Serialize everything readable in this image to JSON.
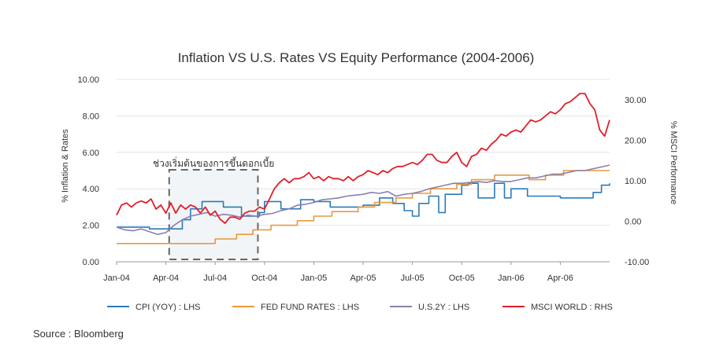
{
  "chart_data": {
    "type": "line",
    "title": "Inflation VS U.S. Rates VS Equity Performance (2004-2006)",
    "ylabel_left": "% Inflation & Rates",
    "ylabel_right": "% MSCI Performance",
    "ylim_left": [
      0,
      10
    ],
    "ylim_right": [
      -10,
      35
    ],
    "left_ticks": [
      "0.00",
      "2.00",
      "4.00",
      "6.00",
      "8.00",
      "10.00"
    ],
    "left_tick_values": [
      0,
      2,
      4,
      6,
      8,
      10
    ],
    "right_ticks": [
      "-10.00",
      "0.00",
      "10.00",
      "20.00",
      "30.00"
    ],
    "right_tick_values": [
      -10,
      0,
      10,
      20,
      30
    ],
    "x_ticks": [
      "Jan-04",
      "Apr-04",
      "Jul-04",
      "Oct-04",
      "Jan-05",
      "Apr-05",
      "Jul-05",
      "Oct-05",
      "Jan-06",
      "Apr-06"
    ],
    "x_tick_values": [
      0,
      3,
      6,
      9,
      12,
      15,
      18,
      21,
      24,
      27
    ],
    "x_range": [
      0,
      30
    ],
    "annotation": {
      "text": "ช่วงเริ่มต้นของการขึ้นดอกเบี้ย",
      "x_start": 3.2,
      "x_end": 8.6
    },
    "series": [
      {
        "name": "CPI (YOY) : LHS",
        "axis": "left",
        "color": "#2a7ab8",
        "step": true,
        "x": [
          0,
          2,
          3.0,
          4.0,
          4.5,
          5.2,
          6.5,
          7.0,
          7.6,
          8.7,
          9.0,
          10.0,
          11.2,
          12.0,
          13.0,
          14.0,
          15.0,
          16.0,
          16.8,
          17.5,
          18.0,
          18.4,
          19.0,
          19.6,
          20.0,
          20.6,
          21.0,
          21.4,
          22.0,
          23.0,
          23.6,
          24.0,
          25.0,
          26.0,
          27.0,
          28.0,
          29.0,
          29.5,
          30.0
        ],
        "y": [
          1.9,
          1.8,
          1.8,
          2.3,
          2.9,
          3.3,
          3.0,
          3.0,
          2.5,
          2.7,
          3.3,
          2.9,
          3.4,
          3.3,
          3.0,
          3.0,
          3.1,
          3.5,
          3.2,
          2.8,
          2.5,
          3.2,
          3.6,
          2.7,
          3.7,
          3.7,
          4.2,
          4.3,
          3.5,
          4.3,
          3.5,
          4.0,
          3.6,
          3.6,
          3.5,
          3.5,
          3.8,
          4.2,
          4.3
        ]
      },
      {
        "name": "FED FUND RATES : LHS",
        "axis": "left",
        "color": "#e89a3c",
        "step": true,
        "x": [
          0,
          6.0,
          7.3,
          8.3,
          9.4,
          11.0,
          12.0,
          13.1,
          14.7,
          15.7,
          17.0,
          18.0,
          19.1,
          20.7,
          21.6,
          23.0,
          24.0,
          25.1,
          26.1,
          27.2,
          28.6,
          30.0
        ],
        "y": [
          1.0,
          1.25,
          1.5,
          1.75,
          2.0,
          2.25,
          2.5,
          2.75,
          3.0,
          3.25,
          3.5,
          3.75,
          4.0,
          4.25,
          4.5,
          4.75,
          4.75,
          4.5,
          4.75,
          5.0,
          5.0,
          5.0
        ]
      },
      {
        "name": "U.S.2Y : LHS",
        "axis": "left",
        "color": "#8a7fb0",
        "step": false,
        "x": [
          0,
          0.5,
          1.0,
          1.5,
          2.0,
          2.5,
          3.0,
          3.5,
          4.0,
          4.5,
          5.0,
          5.5,
          6.0,
          6.5,
          7.0,
          7.5,
          8.0,
          8.5,
          9.0,
          9.5,
          10.0,
          10.5,
          11.0,
          11.5,
          12.0,
          12.5,
          13.0,
          13.5,
          14.0,
          14.5,
          15.0,
          15.5,
          16.0,
          16.5,
          17.0,
          17.5,
          18.0,
          18.5,
          19.0,
          19.5,
          20.0,
          20.5,
          21.0,
          21.5,
          22.0,
          22.5,
          23.0,
          23.5,
          24.0,
          24.5,
          25.0,
          25.5,
          26.0,
          26.5,
          27.0,
          27.5,
          28.0,
          28.5,
          29.0,
          29.5,
          30.0
        ],
        "y": [
          1.9,
          1.75,
          1.7,
          1.8,
          1.65,
          1.5,
          1.6,
          2.0,
          2.3,
          2.5,
          2.6,
          2.7,
          2.5,
          2.6,
          2.55,
          2.45,
          2.55,
          2.5,
          2.6,
          2.65,
          2.8,
          2.9,
          3.1,
          3.15,
          3.25,
          3.4,
          3.45,
          3.5,
          3.6,
          3.65,
          3.7,
          3.8,
          3.75,
          3.85,
          3.6,
          3.7,
          3.75,
          3.85,
          4.0,
          4.1,
          4.2,
          4.3,
          4.3,
          4.35,
          4.4,
          4.35,
          4.45,
          4.4,
          4.4,
          4.5,
          4.6,
          4.6,
          4.7,
          4.8,
          4.8,
          4.9,
          5.0,
          5.0,
          5.1,
          5.2,
          5.3
        ]
      },
      {
        "name": "MSCI WORLD : RHS",
        "axis": "right",
        "color": "#e0202a",
        "step": false,
        "x": [
          0,
          0.3,
          0.6,
          0.9,
          1.2,
          1.5,
          1.8,
          2.1,
          2.4,
          2.7,
          3.0,
          3.3,
          3.6,
          3.9,
          4.2,
          4.5,
          4.8,
          5.1,
          5.4,
          5.7,
          6.0,
          6.3,
          6.6,
          6.9,
          7.2,
          7.5,
          7.8,
          8.1,
          8.4,
          8.7,
          9.0,
          9.3,
          9.6,
          9.9,
          10.2,
          10.5,
          10.8,
          11.1,
          11.4,
          11.7,
          12.0,
          12.3,
          12.6,
          12.9,
          13.2,
          13.5,
          13.8,
          14.1,
          14.4,
          14.7,
          15.0,
          15.3,
          15.6,
          15.9,
          16.2,
          16.5,
          16.8,
          17.1,
          17.4,
          17.7,
          18.0,
          18.3,
          18.6,
          18.9,
          19.2,
          19.5,
          19.8,
          20.1,
          20.4,
          20.7,
          21.0,
          21.3,
          21.6,
          21.9,
          22.2,
          22.5,
          22.8,
          23.1,
          23.4,
          23.7,
          24.0,
          24.3,
          24.6,
          24.9,
          25.2,
          25.5,
          25.8,
          26.1,
          26.4,
          26.7,
          27.0,
          27.3,
          27.6,
          27.9,
          28.2,
          28.5,
          28.8,
          29.1,
          29.4,
          29.7,
          30.0
        ],
        "y": [
          1.5,
          4.0,
          4.5,
          3.5,
          4.5,
          5.0,
          4.5,
          5.5,
          3.0,
          4.0,
          2.0,
          4.5,
          2.0,
          4.0,
          3.0,
          4.0,
          3.5,
          2.0,
          3.5,
          1.5,
          2.5,
          0.5,
          -0.5,
          1.0,
          1.0,
          0.5,
          2.0,
          2.5,
          2.5,
          3.5,
          3.0,
          5.5,
          8.0,
          9.5,
          10.5,
          9.5,
          10.5,
          10.5,
          11.0,
          12.0,
          10.5,
          11.0,
          10.0,
          11.0,
          10.5,
          10.5,
          10.0,
          11.0,
          10.0,
          11.0,
          11.5,
          12.5,
          12.0,
          11.5,
          12.5,
          12.0,
          13.0,
          13.5,
          13.5,
          14.0,
          14.5,
          14.0,
          15.0,
          16.5,
          16.5,
          15.0,
          14.5,
          14.5,
          16.0,
          17.0,
          14.5,
          13.5,
          16.0,
          16.5,
          18.0,
          17.5,
          19.0,
          20.0,
          21.5,
          21.0,
          22.0,
          22.5,
          22.0,
          23.5,
          25.0,
          24.5,
          25.0,
          26.0,
          27.0,
          26.5,
          27.5,
          29.0,
          29.5,
          30.5,
          31.5,
          31.5,
          29.0,
          27.5,
          22.5,
          21.0,
          25.0
        ]
      }
    ]
  },
  "source": "Source : Bloomberg"
}
